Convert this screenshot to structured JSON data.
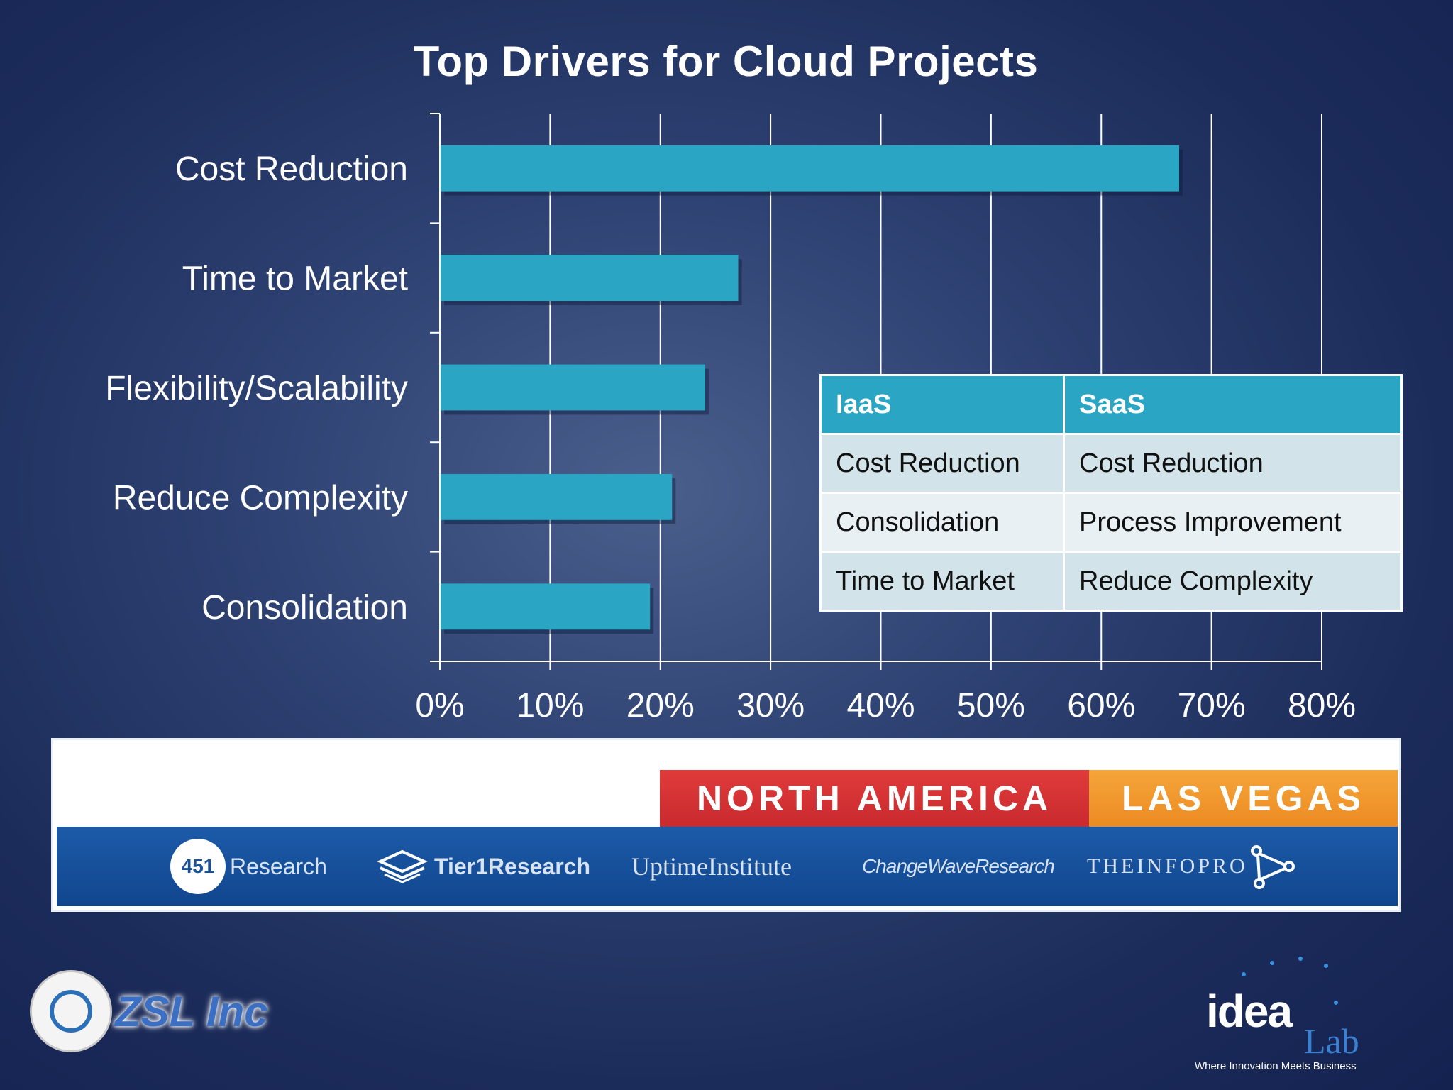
{
  "chart_data": {
    "type": "bar",
    "orientation": "horizontal",
    "title": "Top Drivers for Cloud Projects",
    "categories": [
      "Cost Reduction",
      "Time to Market",
      "Flexibility/Scalability",
      "Reduce Complexity",
      "Consolidation"
    ],
    "values": [
      67,
      27,
      24,
      21,
      19
    ],
    "xlim": [
      0,
      80
    ],
    "ticks": [
      "0%",
      "10%",
      "20%",
      "30%",
      "40%",
      "50%",
      "60%",
      "70%",
      "80%"
    ],
    "grid": true,
    "bar_color": "#2aa6c4"
  },
  "table": {
    "headers": [
      "IaaS",
      "SaaS"
    ],
    "rows": [
      [
        "Cost Reduction",
        "Cost Reduction"
      ],
      [
        "Consolidation",
        "Process Improvement"
      ],
      [
        "Time to Market",
        "Reduce Complexity"
      ]
    ]
  },
  "banner": {
    "region": "NORTH AMERICA",
    "city": "LAS VEGAS",
    "logos": {
      "research_451_number": "451",
      "research_451_word": "Research",
      "tier1": "Tier1Research",
      "uptime": "UptimeInstitute",
      "changewave": "ChangeWaveResearch",
      "infopro": "THEINFOPRO"
    }
  },
  "footer": {
    "zsl": "ZSL Inc",
    "idea": "idea",
    "lab": "Lab",
    "tagline": "Where Innovation Meets Business"
  }
}
